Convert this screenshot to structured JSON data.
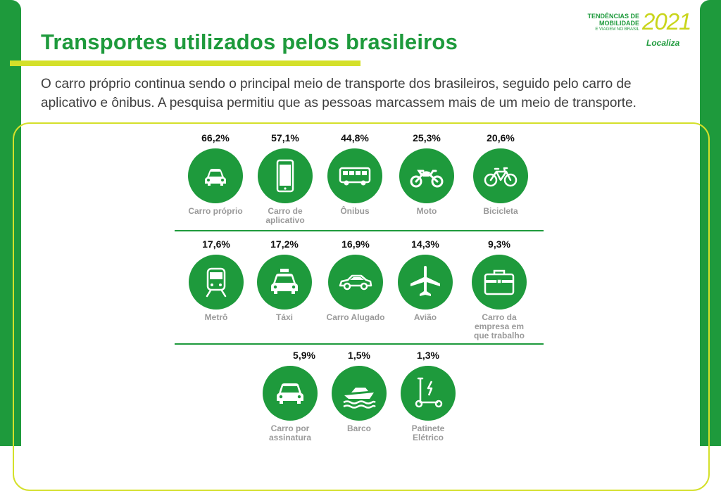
{
  "header": {
    "title": "Transportes utilizados pelos brasileiros",
    "intro": "O carro próprio continua sendo o principal meio de transporte dos brasileiros, seguido pelo carro de aplicativo e ônibus. A pesquisa permitiu que as pessoas marcassem mais de um meio de transporte."
  },
  "brand": {
    "line1": "TENDÊNCIAS DE",
    "line2": "MOBILIDADE",
    "line3": "E VIAGEM NO BRASIL",
    "year": "2021",
    "company": "Localiza"
  },
  "colors": {
    "green": "#1e9a3c",
    "lime": "#d4e02a",
    "label_gray": "#9a9a9a"
  },
  "items": [
    {
      "pct": "66,2%",
      "label": "Carro próprio",
      "icon": "car-front-icon"
    },
    {
      "pct": "57,1%",
      "label": "Carro de aplicativo",
      "icon": "smartphone-icon"
    },
    {
      "pct": "44,8%",
      "label": "Ônibus",
      "icon": "bus-icon"
    },
    {
      "pct": "25,3%",
      "label": "Moto",
      "icon": "motorcycle-icon"
    },
    {
      "pct": "20,6%",
      "label": "Bicicleta",
      "icon": "bicycle-icon"
    },
    {
      "pct": "17,6%",
      "label": "Metrô",
      "icon": "train-icon"
    },
    {
      "pct": "17,2%",
      "label": "Táxi",
      "icon": "taxi-icon"
    },
    {
      "pct": "16,9%",
      "label": "Carro Alugado",
      "icon": "car-side-icon"
    },
    {
      "pct": "14,3%",
      "label": "Avião",
      "icon": "airplane-icon"
    },
    {
      "pct": "9,3%",
      "label": "Carro da empresa em que trabalho",
      "icon": "briefcase-icon"
    },
    {
      "pct": "5,9%",
      "label": "Carro por assinatura",
      "icon": "car-front-icon"
    },
    {
      "pct": "1,5%",
      "label": "Barco",
      "icon": "boat-icon"
    },
    {
      "pct": "1,3%",
      "label": "Patinete Elétrico",
      "icon": "scooter-icon"
    }
  ]
}
